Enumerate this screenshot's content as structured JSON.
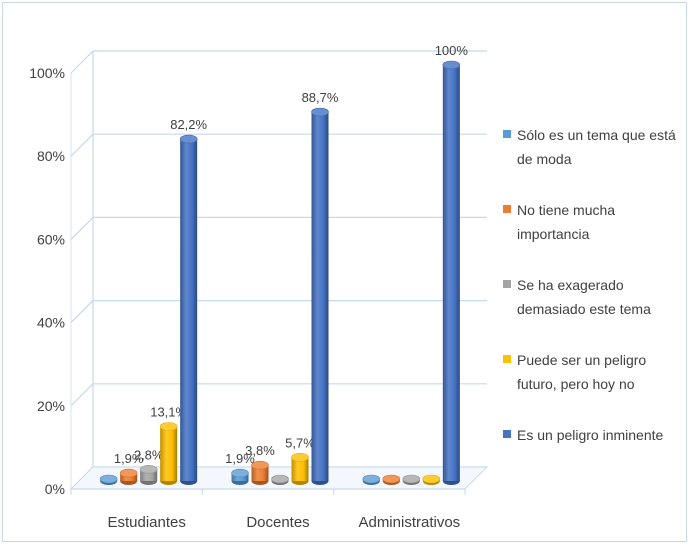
{
  "chart_data": {
    "type": "bar",
    "categories": [
      "Estudiantes",
      "Docentes",
      "Administrativos"
    ],
    "series": [
      {
        "name": "Sólo es un tema que está de moda",
        "values": [
          0,
          1.9,
          0
        ],
        "labels": [
          "",
          "1,9%",
          ""
        ],
        "color": "#5b9bd5"
      },
      {
        "name": "No tiene mucha importancia",
        "values": [
          1.9,
          3.8,
          0
        ],
        "labels": [
          "1,9%",
          "3,8%",
          ""
        ],
        "color": "#ed7d31"
      },
      {
        "name": "Se ha exagerado demasiado este tema",
        "values": [
          2.8,
          0,
          0
        ],
        "labels": [
          "2,8%",
          "",
          ""
        ],
        "color": "#a5a5a5"
      },
      {
        "name": "Puede ser un peligro futuro, pero hoy no",
        "values": [
          13.1,
          5.7,
          0
        ],
        "labels": [
          "13,1%",
          "5,7%",
          ""
        ],
        "color": "#ffc000"
      },
      {
        "name": "Es un peligro inminente",
        "values": [
          82.2,
          88.7,
          100
        ],
        "labels": [
          "82,2%",
          "88,7%",
          "100%"
        ],
        "color": "#4472c4"
      }
    ],
    "y_ticks": [
      "0%",
      "20%",
      "40%",
      "60%",
      "80%",
      "100%"
    ],
    "ylim": [
      0,
      100
    ],
    "grid": true,
    "legend_position": "right"
  }
}
